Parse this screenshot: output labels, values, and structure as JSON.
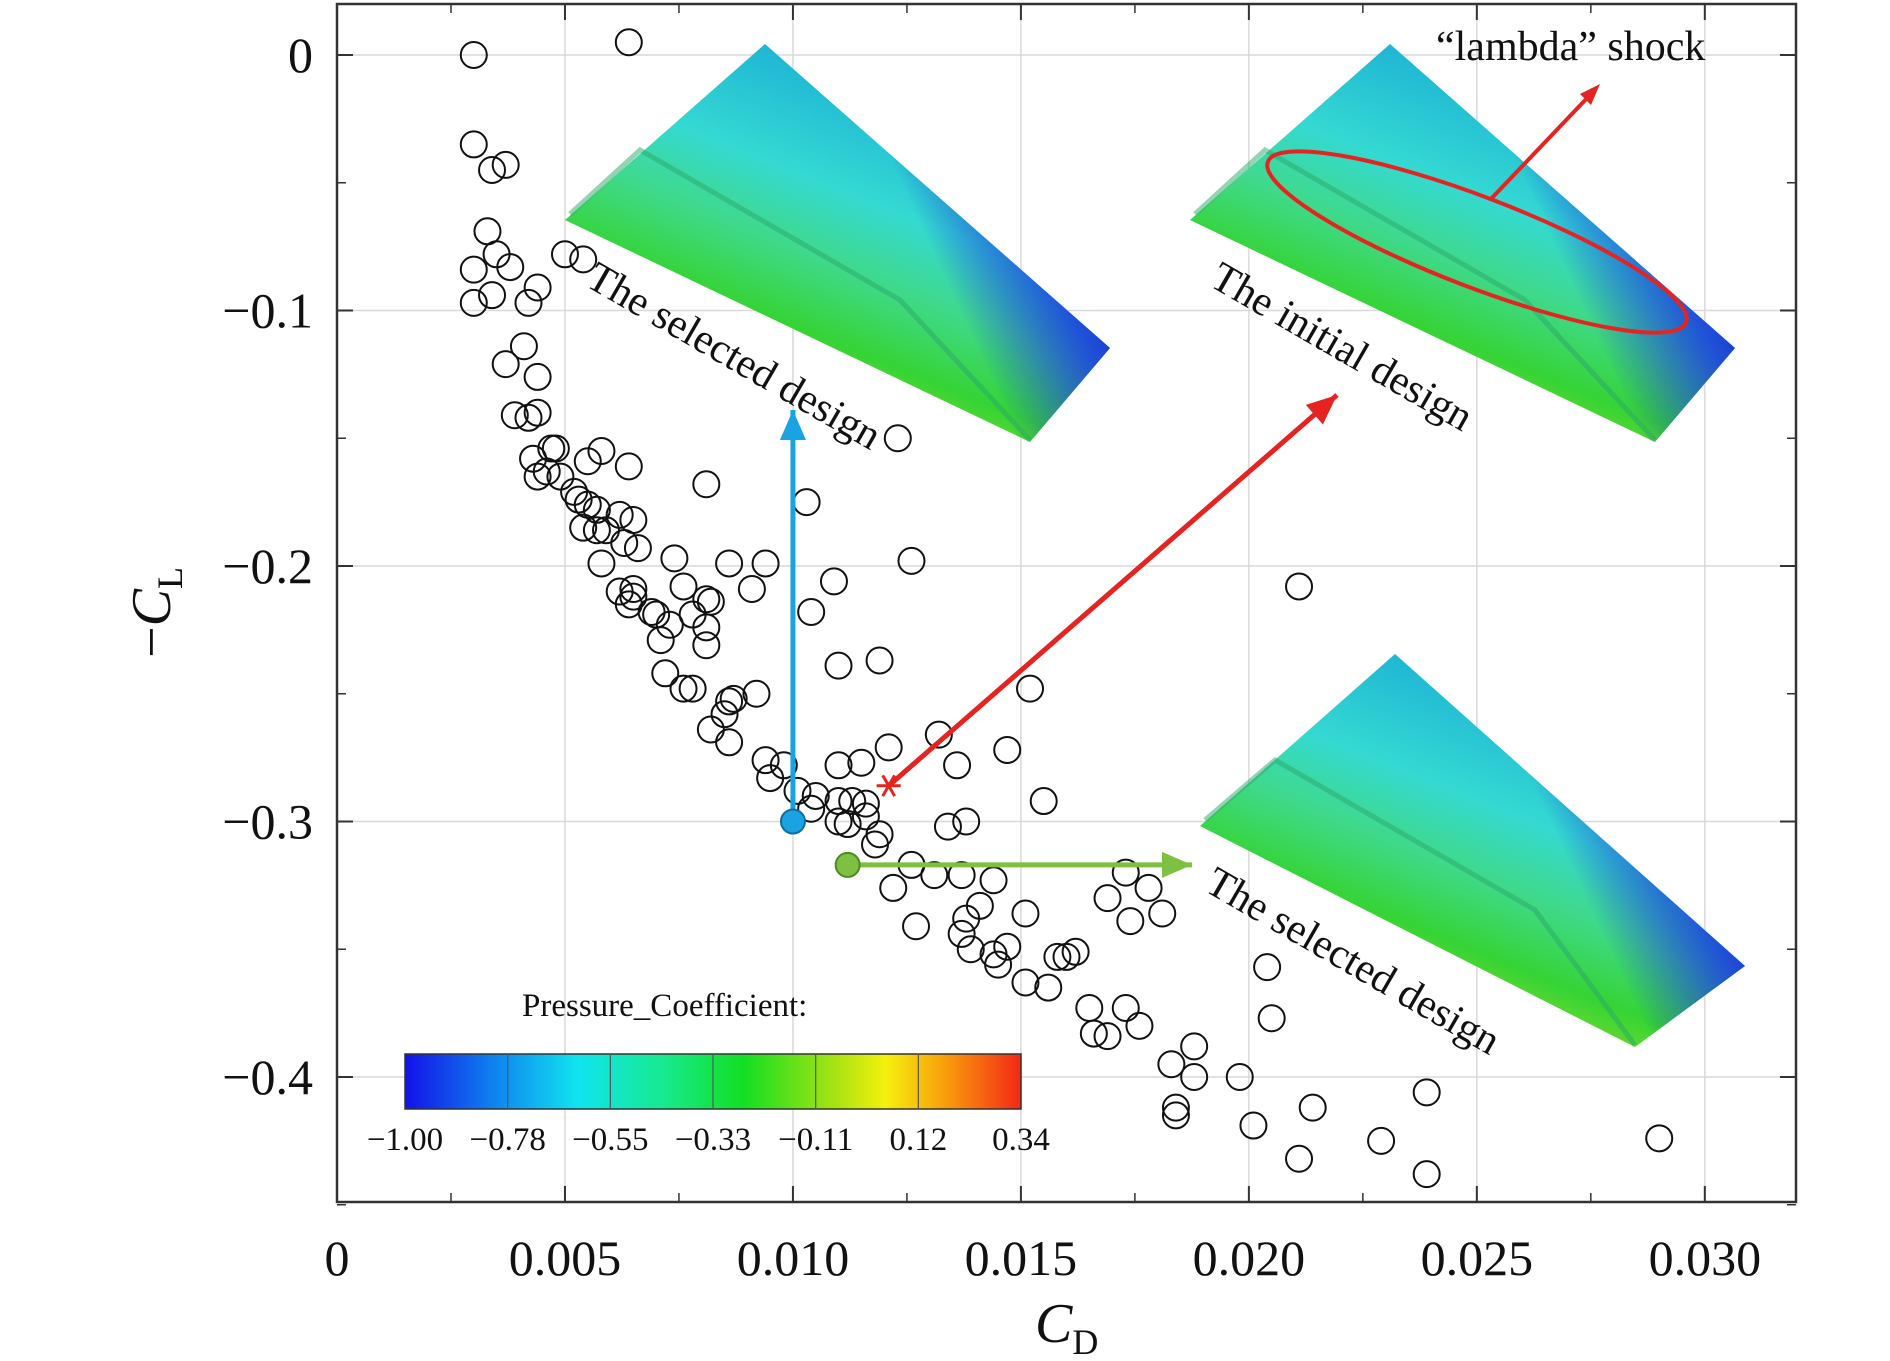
{
  "chart_data": {
    "type": "scatter",
    "xlabel": {
      "main": "C",
      "sub": "D"
    },
    "ylabel": {
      "prefix": "−",
      "main": "C",
      "sub": "L"
    },
    "xlim": [
      0,
      0.032
    ],
    "ylim": [
      -0.45,
      0.02
    ],
    "x_ticks": [
      0,
      0.005,
      0.01,
      0.015,
      0.02,
      0.025,
      0.03
    ],
    "x_tick_labels": [
      "0",
      "0.005",
      "0.010",
      "0.015",
      "0.020",
      "0.025",
      "0.030"
    ],
    "y_ticks": [
      0,
      -0.1,
      -0.2,
      -0.3,
      -0.4
    ],
    "y_tick_labels": [
      "0",
      "−0.1",
      "−0.2",
      "−0.3",
      "−0.4"
    ],
    "grid": true,
    "series": [
      {
        "marker": "open-circle",
        "points": [
          [
            0.003,
            0.0
          ],
          [
            0.0064,
            0.005
          ],
          [
            0.003,
            -0.035
          ],
          [
            0.0034,
            -0.045
          ],
          [
            0.0037,
            -0.043
          ],
          [
            0.0033,
            -0.069
          ],
          [
            0.003,
            -0.084
          ],
          [
            0.0035,
            -0.078
          ],
          [
            0.0038,
            -0.083
          ],
          [
            0.003,
            -0.097
          ],
          [
            0.0034,
            -0.094
          ],
          [
            0.005,
            -0.078
          ],
          [
            0.0054,
            -0.08
          ],
          [
            0.0044,
            -0.091
          ],
          [
            0.0042,
            -0.097
          ],
          [
            0.0041,
            -0.114
          ],
          [
            0.0037,
            -0.121
          ],
          [
            0.0044,
            -0.126
          ],
          [
            0.0039,
            -0.141
          ],
          [
            0.0042,
            -0.142
          ],
          [
            0.0044,
            -0.14
          ],
          [
            0.0047,
            -0.154
          ],
          [
            0.0048,
            -0.154
          ],
          [
            0.0043,
            -0.158
          ],
          [
            0.0044,
            -0.165
          ],
          [
            0.0046,
            -0.163
          ],
          [
            0.0049,
            -0.165
          ],
          [
            0.0052,
            -0.171
          ],
          [
            0.0055,
            -0.159
          ],
          [
            0.0058,
            -0.155
          ],
          [
            0.0064,
            -0.161
          ],
          [
            0.0053,
            -0.174
          ],
          [
            0.0055,
            -0.176
          ],
          [
            0.0057,
            -0.178
          ],
          [
            0.0062,
            -0.18
          ],
          [
            0.0065,
            -0.182
          ],
          [
            0.0054,
            -0.185
          ],
          [
            0.0057,
            -0.186
          ],
          [
            0.0059,
            -0.186
          ],
          [
            0.0063,
            -0.191
          ],
          [
            0.0066,
            -0.193
          ],
          [
            0.0058,
            -0.199
          ],
          [
            0.0062,
            -0.21
          ],
          [
            0.0065,
            -0.212
          ],
          [
            0.0064,
            -0.215
          ],
          [
            0.0065,
            -0.209
          ],
          [
            0.0069,
            -0.218
          ],
          [
            0.007,
            -0.219
          ],
          [
            0.0071,
            -0.229
          ],
          [
            0.0073,
            -0.223
          ],
          [
            0.0074,
            -0.197
          ],
          [
            0.0076,
            -0.208
          ],
          [
            0.0078,
            -0.219
          ],
          [
            0.0081,
            -0.213
          ],
          [
            0.0082,
            -0.214
          ],
          [
            0.0081,
            -0.231
          ],
          [
            0.0081,
            -0.224
          ],
          [
            0.0086,
            -0.199
          ],
          [
            0.0091,
            -0.209
          ],
          [
            0.0094,
            -0.199
          ],
          [
            0.0072,
            -0.242
          ],
          [
            0.0076,
            -0.248
          ],
          [
            0.0078,
            -0.248
          ],
          [
            0.0082,
            -0.264
          ],
          [
            0.0085,
            -0.258
          ],
          [
            0.0086,
            -0.253
          ],
          [
            0.0087,
            -0.252
          ],
          [
            0.0086,
            -0.269
          ],
          [
            0.0092,
            -0.25
          ],
          [
            0.0094,
            -0.276
          ],
          [
            0.0095,
            -0.283
          ],
          [
            0.0098,
            -0.278
          ],
          [
            0.0101,
            -0.288
          ],
          [
            0.0104,
            -0.295
          ],
          [
            0.0105,
            -0.29
          ],
          [
            0.0103,
            -0.175
          ],
          [
            0.0104,
            -0.218
          ],
          [
            0.0109,
            -0.206
          ],
          [
            0.011,
            -0.239
          ],
          [
            0.011,
            -0.278
          ],
          [
            0.0115,
            -0.277
          ],
          [
            0.0113,
            -0.292
          ],
          [
            0.0116,
            -0.293
          ],
          [
            0.0116,
            -0.298
          ],
          [
            0.0119,
            -0.305
          ],
          [
            0.0118,
            -0.309
          ],
          [
            0.011,
            -0.292
          ],
          [
            0.011,
            -0.3
          ],
          [
            0.0112,
            -0.301
          ],
          [
            0.0121,
            -0.271
          ],
          [
            0.0119,
            -0.237
          ],
          [
            0.0126,
            -0.198
          ],
          [
            0.0123,
            -0.15
          ],
          [
            0.0081,
            -0.168
          ],
          [
            0.0122,
            -0.326
          ],
          [
            0.0126,
            -0.317
          ],
          [
            0.0127,
            -0.341
          ],
          [
            0.0131,
            -0.321
          ],
          [
            0.0132,
            -0.266
          ],
          [
            0.0134,
            -0.302
          ],
          [
            0.0136,
            -0.278
          ],
          [
            0.0138,
            -0.3
          ],
          [
            0.0137,
            -0.321
          ],
          [
            0.0137,
            -0.344
          ],
          [
            0.0138,
            -0.338
          ],
          [
            0.0139,
            -0.35
          ],
          [
            0.0141,
            -0.333
          ],
          [
            0.0144,
            -0.323
          ],
          [
            0.0144,
            -0.352
          ],
          [
            0.0145,
            -0.356
          ],
          [
            0.0147,
            -0.349
          ],
          [
            0.0147,
            -0.272
          ],
          [
            0.0151,
            -0.336
          ],
          [
            0.0152,
            -0.248
          ],
          [
            0.0151,
            -0.363
          ],
          [
            0.0155,
            -0.292
          ],
          [
            0.0156,
            -0.365
          ],
          [
            0.0158,
            -0.353
          ],
          [
            0.016,
            -0.353
          ],
          [
            0.0162,
            -0.351
          ],
          [
            0.0165,
            -0.373
          ],
          [
            0.0166,
            -0.383
          ],
          [
            0.0169,
            -0.33
          ],
          [
            0.0169,
            -0.384
          ],
          [
            0.0173,
            -0.32
          ],
          [
            0.0173,
            -0.373
          ],
          [
            0.0174,
            -0.339
          ],
          [
            0.0176,
            -0.38
          ],
          [
            0.0178,
            -0.326
          ],
          [
            0.0181,
            -0.336
          ],
          [
            0.0183,
            -0.395
          ],
          [
            0.0184,
            -0.412
          ],
          [
            0.0184,
            -0.415
          ],
          [
            0.0188,
            -0.4
          ],
          [
            0.0188,
            -0.388
          ],
          [
            0.0198,
            -0.4
          ],
          [
            0.0201,
            -0.419
          ],
          [
            0.0204,
            -0.357
          ],
          [
            0.0205,
            -0.377
          ],
          [
            0.0211,
            -0.208
          ],
          [
            0.0211,
            -0.432
          ],
          [
            0.0214,
            -0.412
          ],
          [
            0.0229,
            -0.425
          ],
          [
            0.0239,
            -0.406
          ],
          [
            0.0239,
            -0.438
          ],
          [
            0.029,
            -0.424
          ]
        ]
      }
    ],
    "highlighted_points": [
      {
        "name": "blue",
        "x": 0.01,
        "y": -0.3,
        "color": "#1aa3e3"
      },
      {
        "name": "green",
        "x": 0.0112,
        "y": -0.317,
        "color": "#7ec142"
      },
      {
        "name": "initial",
        "x": 0.0121,
        "y": -0.286,
        "color": "#e52421",
        "marker": "star"
      }
    ],
    "annotations": [
      {
        "text": "The selected design",
        "color": "#1aa3e3"
      },
      {
        "text": "The initial design",
        "color": "#e52421"
      },
      {
        "text": "The selected design",
        "color": "#7ec142"
      },
      {
        "text": "“lambda” shock",
        "color": "#e52421"
      }
    ],
    "colorbar": {
      "title": "Pressure_Coefficient:",
      "range": [
        -1.0,
        0.34
      ],
      "tick_labels": [
        "−1.00",
        "−0.78",
        "−0.55",
        "−0.33",
        "−0.11",
        "0.12",
        "0.34"
      ],
      "colors": [
        "#1212e8",
        "#0f8ef0",
        "#10e4ef",
        "#17ea8e",
        "#12df22",
        "#a9e312",
        "#f4f00d",
        "#f99b0b",
        "#f22816"
      ]
    }
  }
}
